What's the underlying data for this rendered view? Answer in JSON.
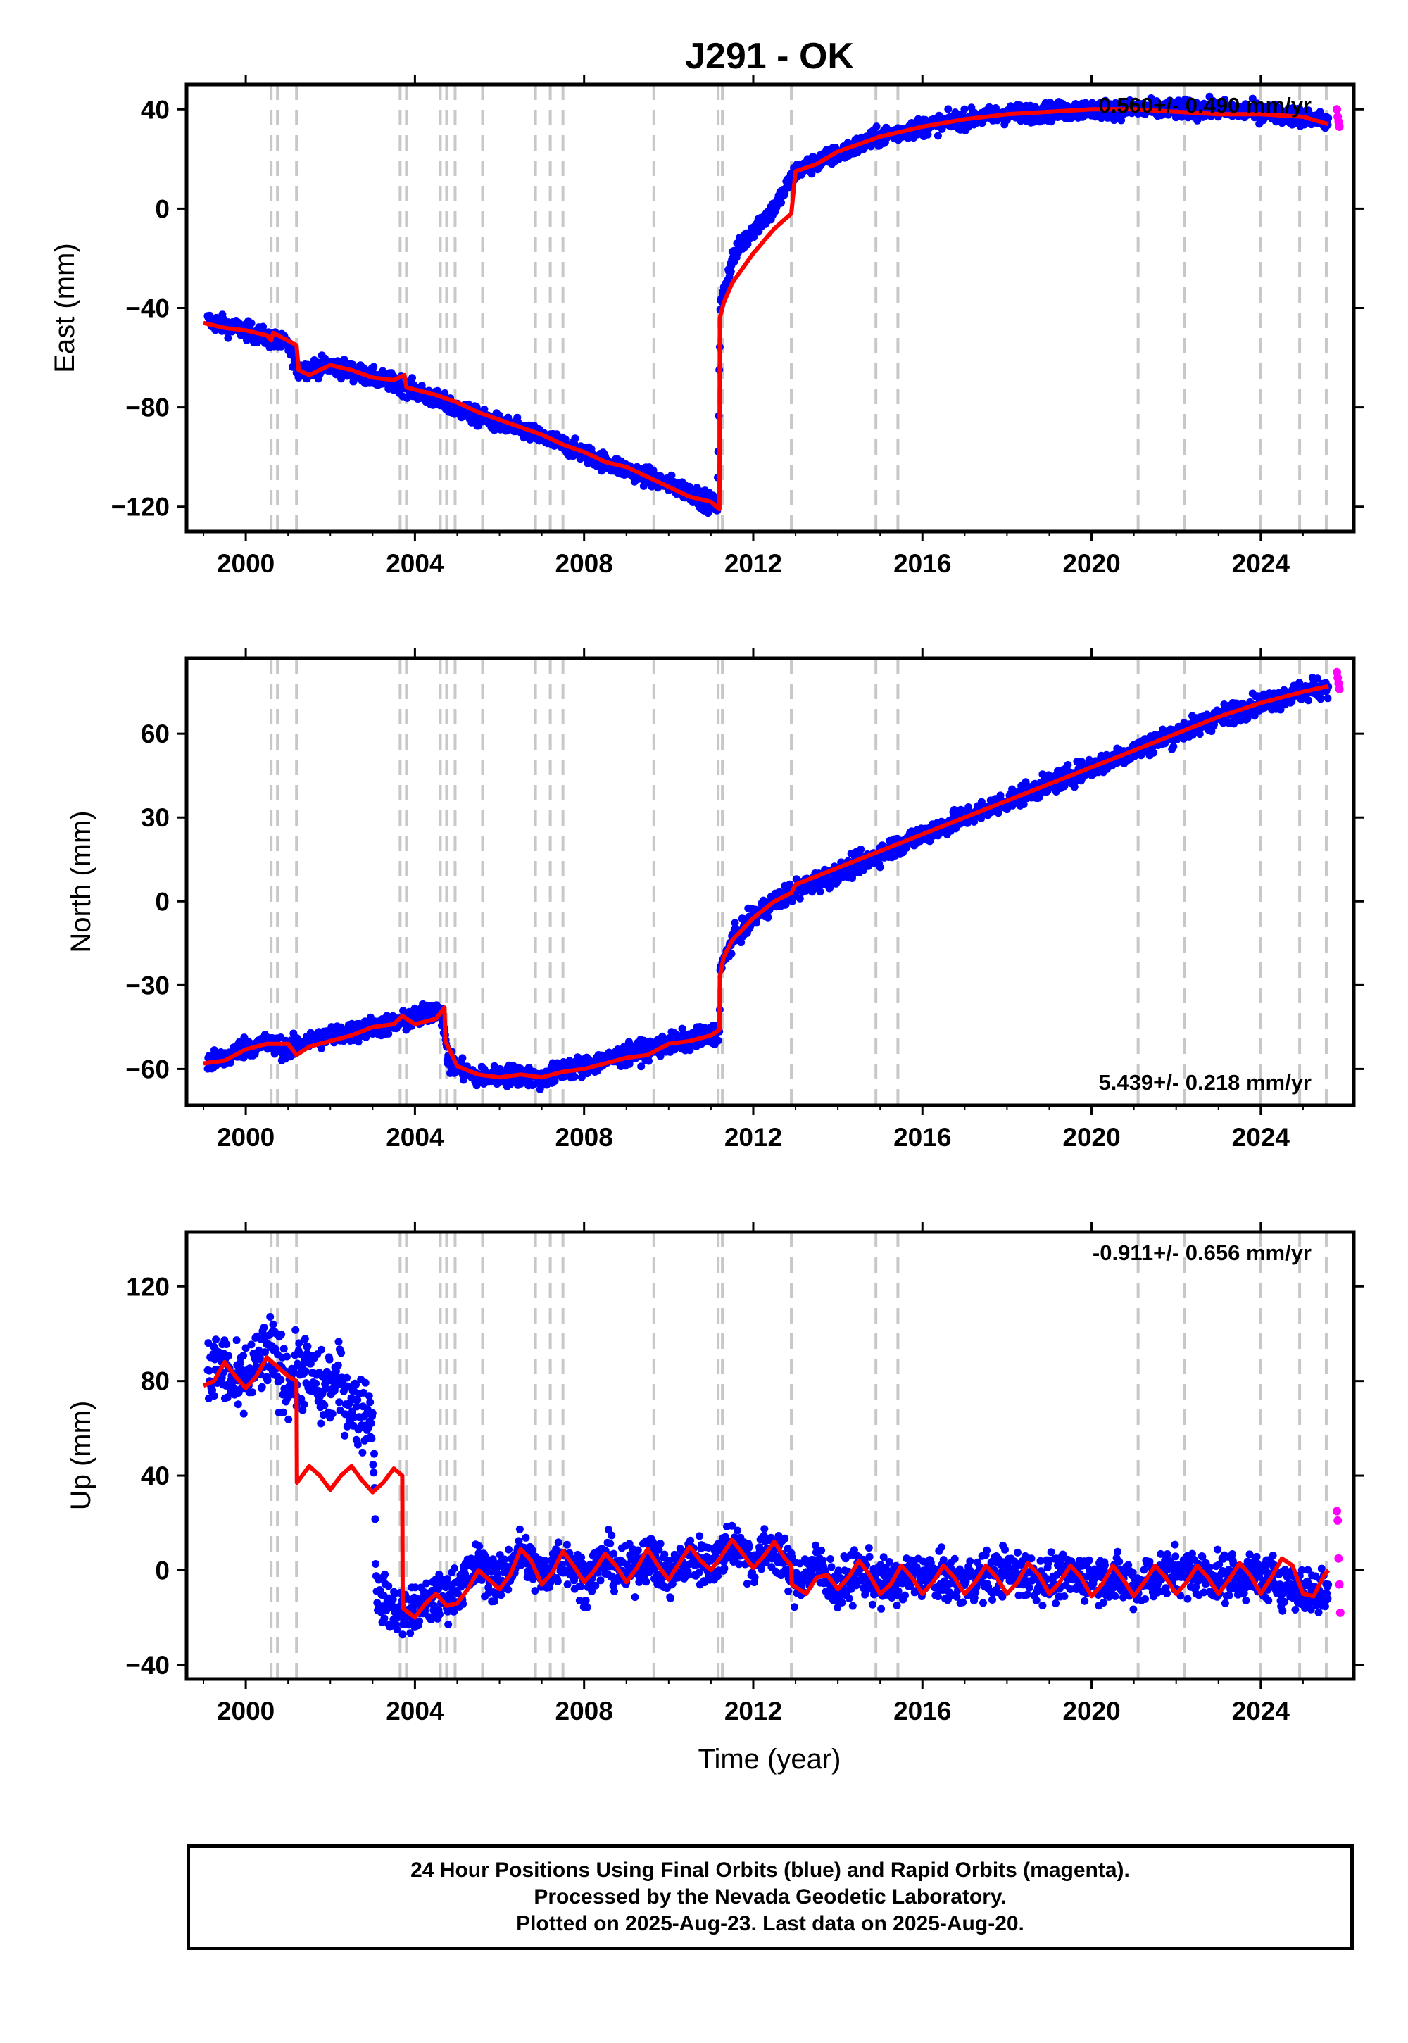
{
  "title": "J291 - OK",
  "x_label": "Time (year)",
  "footer": {
    "line1": "24 Hour Positions Using Final Orbits (blue) and Rapid Orbits (magenta).",
    "line2": "Processed by the Nevada Geodetic Laboratory.",
    "line3": "Plotted on 2025-Aug-23. Last data on 2025-Aug-20."
  },
  "colors": {
    "final": "#0000ff",
    "rapid": "#ff00ff",
    "model": "#ff0000",
    "events": "#c8c8c8"
  },
  "chart_data": [
    {
      "type": "scatter",
      "id": "east",
      "title": "J291 - OK",
      "ylabel": "East (mm)",
      "xlabel": "",
      "xlim": [
        1998.6,
        2026.2
      ],
      "ylim": [
        -130,
        50
      ],
      "xticks": [
        2000,
        2004,
        2008,
        2012,
        2016,
        2020,
        2024
      ],
      "yticks": [
        -120,
        -80,
        -40,
        0,
        40
      ],
      "ytick_labels": [
        "−120",
        "−80",
        "−40",
        "0",
        "40"
      ],
      "rate_label": "0.560+/- 0.490 mm/yr",
      "rate_position": "top-right",
      "series": [
        {
          "kind": "final",
          "x": [
            1999.1,
            1999.5,
            2000.0,
            2000.5,
            2001.0,
            2001.25,
            2002.0,
            2003.0,
            2003.7,
            2004.5,
            2005.5,
            2006.5,
            2007.5,
            2008.5,
            2009.5,
            2010.5,
            2011.15,
            2011.22,
            2011.5,
            2012.0,
            2012.5,
            2013.0,
            2014.0,
            2015.0,
            2016.0,
            2017.0,
            2018.0,
            2019.0,
            2020.0,
            2021.0,
            2022.0,
            2023.0,
            2024.0,
            2025.0,
            2025.6
          ],
          "y": [
            -45,
            -47,
            -49,
            -52,
            -55,
            -65,
            -63,
            -68,
            -71,
            -77,
            -84,
            -89,
            -95,
            -102,
            -108,
            -114,
            -120,
            -40,
            -20,
            -8,
            0,
            15,
            22,
            29,
            33,
            36,
            38,
            39,
            40,
            40,
            40,
            40,
            39,
            37,
            35
          ]
        },
        {
          "kind": "rapid",
          "x": [
            2025.6,
            2025.62,
            2025.64,
            2025.66
          ],
          "y": [
            40,
            37,
            35,
            33
          ]
        }
      ],
      "model": {
        "x": [
          1999.0,
          1999.5,
          2000.0,
          2000.5,
          2000.6,
          2000.65,
          2001.2,
          2001.25,
          2001.5,
          2002.0,
          2002.5,
          2003.0,
          2003.5,
          2003.75,
          2003.8,
          2004.5,
          2005.0,
          2005.5,
          2006.0,
          2006.5,
          2007.0,
          2007.5,
          2008.0,
          2008.5,
          2009.0,
          2009.5,
          2010.0,
          2010.5,
          2011.0,
          2011.2,
          2011.21,
          2011.3,
          2011.5,
          2012.0,
          2012.5,
          2012.9,
          2013.0,
          2013.5,
          2014.0,
          2015.0,
          2016.0,
          2017.0,
          2018.0,
          2019.0,
          2020.0,
          2021.0,
          2022.0,
          2023.0,
          2024.0,
          2025.0,
          2025.6
        ],
        "y": [
          -46,
          -48,
          -49,
          -51,
          -53,
          -50,
          -55,
          -65,
          -67,
          -63,
          -65,
          -68,
          -69,
          -67,
          -72,
          -75,
          -78,
          -82,
          -85,
          -88,
          -91,
          -95,
          -98,
          -102,
          -104,
          -108,
          -112,
          -116,
          -118,
          -121,
          -44,
          -38,
          -30,
          -18,
          -8,
          -2,
          15,
          18,
          23,
          29,
          33,
          36,
          38,
          39,
          40,
          40,
          39,
          38,
          38,
          37,
          34
        ]
      }
    },
    {
      "type": "scatter",
      "id": "north",
      "ylabel": "North (mm)",
      "xlabel": "",
      "xlim": [
        1998.6,
        2026.2
      ],
      "ylim": [
        -73,
        87
      ],
      "xticks": [
        2000,
        2004,
        2008,
        2012,
        2016,
        2020,
        2024
      ],
      "yticks": [
        -60,
        -30,
        0,
        30,
        60
      ],
      "ytick_labels": [
        "−60",
        "−30",
        "0",
        "30",
        "60"
      ],
      "rate_label": "5.439+/- 0.218 mm/yr",
      "rate_position": "bottom-right",
      "series": [
        {
          "kind": "final",
          "x": [
            1999.1,
            1999.5,
            2000.0,
            2000.5,
            2001.0,
            2001.5,
            2002.0,
            2002.5,
            2003.0,
            2003.5,
            2004.0,
            2004.6,
            2004.8,
            2005.5,
            2006.5,
            2007.0,
            2007.5,
            2008.0,
            2008.5,
            2009.0,
            2010.0,
            2011.0,
            2011.2,
            2011.22,
            2011.5,
            2012.0,
            2012.5,
            2013.0,
            2014.0,
            2015.0,
            2016.0,
            2017.0,
            2018.0,
            2019.0,
            2020.0,
            2021.0,
            2022.0,
            2023.0,
            2024.0,
            2025.0,
            2025.6
          ],
          "y": [
            -58,
            -56,
            -52,
            -51,
            -53,
            -50,
            -48,
            -47,
            -45,
            -44,
            -42,
            -38,
            -58,
            -63,
            -62,
            -64,
            -60,
            -59,
            -57,
            -55,
            -51,
            -48,
            -46,
            -25,
            -14,
            -6,
            0,
            4,
            10,
            17,
            24,
            30,
            36,
            42,
            48,
            54,
            60,
            66,
            71,
            75,
            77
          ]
        },
        {
          "kind": "rapid",
          "x": [
            2025.6,
            2025.62,
            2025.64,
            2025.66
          ],
          "y": [
            82,
            80,
            78,
            76
          ]
        }
      ],
      "model": {
        "x": [
          1999.0,
          1999.5,
          2000.0,
          2000.5,
          2001.0,
          2001.2,
          2001.5,
          2002.0,
          2002.5,
          2003.0,
          2003.5,
          2003.7,
          2004.0,
          2004.5,
          2004.7,
          2004.72,
          2005.0,
          2005.5,
          2006.0,
          2006.5,
          2007.0,
          2007.5,
          2008.0,
          2008.5,
          2009.0,
          2009.5,
          2010.0,
          2010.5,
          2011.0,
          2011.2,
          2011.21,
          2011.3,
          2011.5,
          2012.0,
          2012.5,
          2012.9,
          2013.0,
          2014.0,
          2015.0,
          2016.0,
          2017.0,
          2018.0,
          2019.0,
          2020.0,
          2021.0,
          2022.0,
          2023.0,
          2024.0,
          2025.0,
          2025.6
        ],
        "y": [
          -58,
          -57,
          -53,
          -51,
          -51,
          -55,
          -52,
          -50,
          -48,
          -45,
          -44,
          -41,
          -44,
          -42,
          -38,
          -50,
          -59,
          -62,
          -63,
          -62,
          -63,
          -61,
          -60,
          -58,
          -56,
          -55,
          -51,
          -50,
          -48,
          -46,
          -27,
          -20,
          -14,
          -6,
          0,
          3,
          6,
          12,
          18,
          24,
          30,
          36,
          42,
          48,
          54,
          60,
          66,
          71,
          75,
          77
        ]
      }
    },
    {
      "type": "scatter",
      "id": "up",
      "ylabel": "Up (mm)",
      "xlabel": "Time (year)",
      "xlim": [
        1998.6,
        2026.2
      ],
      "ylim": [
        -46,
        143
      ],
      "xticks": [
        2000,
        2004,
        2008,
        2012,
        2016,
        2020,
        2024
      ],
      "yticks": [
        -40,
        0,
        40,
        80,
        120
      ],
      "ytick_labels": [
        "−40",
        "0",
        "40",
        "80",
        "120"
      ],
      "rate_label": "-0.911+/- 0.656 mm/yr",
      "rate_position": "top-right",
      "series": [
        {
          "kind": "final",
          "x": [
            1999.1,
            1999.4,
            1999.8,
            2000.2,
            2000.6,
            2001.0,
            2001.4,
            2001.8,
            2002.2,
            2002.6,
            2003.0,
            2003.1,
            2003.4,
            2003.8,
            2004.2,
            2004.6,
            2005.0,
            2005.5,
            2006.0,
            2006.5,
            2007.0,
            2007.5,
            2008.0,
            2008.5,
            2009.0,
            2009.5,
            2010.0,
            2010.5,
            2011.0,
            2011.5,
            2012.0,
            2012.5,
            2013.0,
            2013.5,
            2014.0,
            2014.5,
            2015.0,
            2016.0,
            2017.0,
            2018.0,
            2019.0,
            2020.0,
            2021.0,
            2022.0,
            2023.0,
            2024.0,
            2025.0,
            2025.6
          ],
          "y": [
            80,
            88,
            76,
            85,
            92,
            80,
            85,
            75,
            80,
            68,
            65,
            -10,
            -15,
            -18,
            -15,
            -12,
            -8,
            2,
            -5,
            8,
            -3,
            6,
            -4,
            5,
            -2,
            7,
            -3,
            6,
            2,
            12,
            4,
            10,
            -5,
            2,
            -8,
            0,
            -6,
            -2,
            -5,
            0,
            -4,
            -2,
            -6,
            0,
            -3,
            -2,
            -8,
            -10
          ]
        },
        {
          "kind": "rapid",
          "x": [
            2025.6,
            2025.62,
            2025.64,
            2025.66,
            2025.68
          ],
          "y": [
            25,
            21,
            5,
            -6,
            -18
          ]
        }
      ],
      "model": {
        "x": [
          1999.0,
          1999.25,
          1999.5,
          1999.75,
          2000.0,
          2000.25,
          2000.5,
          2000.75,
          2001.0,
          2001.2,
          2001.21,
          2001.5,
          2001.75,
          2002.0,
          2002.25,
          2002.5,
          2002.75,
          2003.0,
          2003.25,
          2003.5,
          2003.7,
          2003.71,
          2004.0,
          2004.25,
          2004.5,
          2004.75,
          2005.0,
          2005.25,
          2005.5,
          2005.75,
          2006.0,
          2006.25,
          2006.5,
          2006.75,
          2007.0,
          2007.25,
          2007.5,
          2007.75,
          2008.0,
          2008.25,
          2008.5,
          2008.75,
          2009.0,
          2009.25,
          2009.5,
          2009.75,
          2010.0,
          2010.25,
          2010.5,
          2010.75,
          2011.0,
          2011.25,
          2011.5,
          2011.75,
          2012.0,
          2012.25,
          2012.5,
          2012.75,
          2012.9,
          2012.91,
          2013.25,
          2013.5,
          2013.75,
          2014.0,
          2014.25,
          2014.5,
          2014.75,
          2015.0,
          2015.25,
          2015.5,
          2015.75,
          2016.0,
          2016.25,
          2016.5,
          2016.75,
          2017.0,
          2017.25,
          2017.5,
          2017.75,
          2018.0,
          2018.25,
          2018.5,
          2018.75,
          2019.0,
          2019.25,
          2019.5,
          2019.75,
          2020.0,
          2020.25,
          2020.5,
          2020.75,
          2021.0,
          2021.25,
          2021.5,
          2021.75,
          2022.0,
          2022.25,
          2022.5,
          2022.75,
          2023.0,
          2023.25,
          2023.5,
          2023.75,
          2024.0,
          2024.25,
          2024.5,
          2024.75,
          2025.0,
          2025.25,
          2025.5,
          2025.6
        ],
        "y": [
          78,
          80,
          88,
          82,
          77,
          82,
          90,
          86,
          82,
          80,
          37,
          44,
          40,
          34,
          40,
          44,
          38,
          33,
          37,
          43,
          40,
          -16,
          -20,
          -14,
          -10,
          -15,
          -14,
          -8,
          0,
          -4,
          -8,
          -2,
          9,
          4,
          -6,
          -1,
          8,
          2,
          -5,
          0,
          7,
          2,
          -5,
          1,
          9,
          2,
          -4,
          3,
          10,
          4,
          0,
          6,
          13,
          7,
          1,
          6,
          12,
          5,
          2,
          -6,
          -10,
          -3,
          -2,
          -8,
          -3,
          4,
          -2,
          -10,
          -6,
          2,
          -3,
          -10,
          -5,
          2,
          -3,
          -10,
          -5,
          2,
          -3,
          -10,
          -5,
          3,
          -2,
          -10,
          -5,
          2,
          -3,
          -11,
          -6,
          2,
          -4,
          -11,
          -5,
          2,
          -3,
          -10,
          -5,
          2,
          -3,
          -10,
          -4,
          3,
          -2,
          -10,
          -3,
          5,
          2,
          -10,
          -11,
          -2,
          0
        ]
      }
    }
  ],
  "events": [
    2000.6,
    2000.75,
    2001.2,
    2003.65,
    2003.8,
    2004.6,
    2004.75,
    2004.95,
    2005.6,
    2006.85,
    2007.2,
    2007.5,
    2009.65,
    2011.17,
    2011.27,
    2012.9,
    2014.9,
    2015.42,
    2021.1,
    2022.2,
    2024.0,
    2024.92,
    2025.55
  ]
}
